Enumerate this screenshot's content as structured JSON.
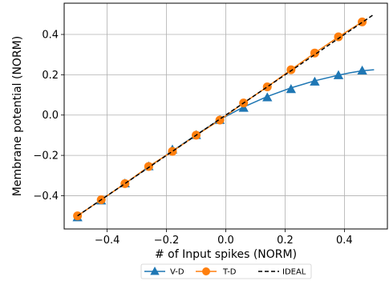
{
  "chart_data": {
    "type": "line",
    "xlabel": "# of Input spikes (NORM)",
    "ylabel": "Membrane potential (NORM)",
    "xlim": [
      -0.545,
      0.545
    ],
    "ylim": [
      -0.565,
      0.555
    ],
    "xticks": [
      -0.4,
      -0.2,
      0.0,
      0.2,
      0.4
    ],
    "xtick_labels": [
      "−0.4",
      "−0.2",
      "0.0",
      "0.2",
      "0.4"
    ],
    "yticks": [
      -0.4,
      -0.2,
      0.0,
      0.2,
      0.4
    ],
    "ytick_labels": [
      "−0.4",
      "−0.2",
      "0.0",
      "0.2",
      "0.4"
    ],
    "grid": true,
    "legend_position": "below",
    "series": [
      {
        "name": "V-D",
        "color": "#1f77b4",
        "marker": "triangle",
        "line": "solid",
        "curve": [
          [
            -0.5,
            -0.5
          ],
          [
            -0.42,
            -0.42
          ],
          [
            -0.34,
            -0.34
          ],
          [
            -0.26,
            -0.258
          ],
          [
            -0.18,
            -0.178
          ],
          [
            -0.1,
            -0.098
          ],
          [
            -0.02,
            -0.022
          ],
          [
            0.06,
            0.04
          ],
          [
            0.14,
            0.092
          ],
          [
            0.22,
            0.135
          ],
          [
            0.3,
            0.17
          ],
          [
            0.38,
            0.198
          ],
          [
            0.42,
            0.21
          ],
          [
            0.46,
            0.22
          ],
          [
            0.5,
            0.225
          ]
        ],
        "x": [
          -0.5,
          -0.42,
          -0.34,
          -0.26,
          -0.18,
          -0.1,
          -0.02,
          0.06,
          0.14,
          0.22,
          0.3,
          0.38,
          0.46
        ],
        "y": [
          -0.508,
          -0.425,
          -0.34,
          -0.255,
          -0.172,
          -0.1,
          -0.025,
          0.035,
          0.087,
          0.128,
          0.165,
          0.197,
          0.22
        ]
      },
      {
        "name": "T-D",
        "color": "#ff7f0e",
        "marker": "circle",
        "line": "solid",
        "x": [
          -0.5,
          -0.42,
          -0.34,
          -0.26,
          -0.18,
          -0.1,
          -0.02,
          0.06,
          0.14,
          0.22,
          0.3,
          0.38,
          0.46
        ],
        "y": [
          -0.5,
          -0.42,
          -0.34,
          -0.255,
          -0.18,
          -0.1,
          -0.025,
          0.06,
          0.14,
          0.225,
          0.308,
          0.388,
          0.462
        ]
      },
      {
        "name": "IDEAL",
        "color": "#000000",
        "marker": "none",
        "line": "dashed",
        "x": [
          -0.5,
          0.5
        ],
        "y": [
          -0.5,
          0.5
        ]
      }
    ]
  }
}
